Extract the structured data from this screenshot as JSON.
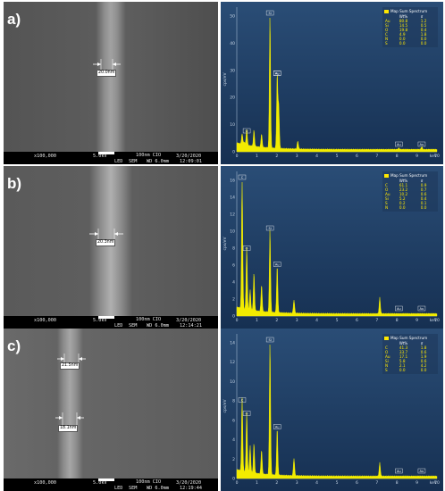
{
  "panels": [
    {
      "letter": "a)",
      "sem": {
        "measurements": [
          "20.0nm"
        ],
        "footer": {
          "mag": "x100,000",
          "kv": "5.0kV",
          "det": "LED",
          "scale": "100nm CIO",
          "date": "3/20/2020",
          "sem": "SEM",
          "wd": "WD 6.0mm",
          "time": "12:09:01"
        }
      },
      "eds": {
        "legend_title": "Map Sum Spectrum",
        "columns": [
          "",
          "Wt%",
          "σ"
        ],
        "rows": [
          [
            "Au",
            "80.8",
            "1.2"
          ],
          [
            "Si",
            "14.5",
            "0.5"
          ],
          [
            "O",
            "19.8",
            "0.4"
          ],
          [
            "C",
            "4.9",
            "1.8"
          ],
          [
            "N",
            "0.0",
            "0.0"
          ],
          [
            "S",
            "0.0",
            "0.0"
          ]
        ],
        "y_ticks": [
          "50",
          "40",
          "30",
          "20",
          "10",
          "0"
        ],
        "y_label": "cps/eV",
        "x_ticks": [
          "0",
          "1",
          "2",
          "3",
          "4",
          "5",
          "6",
          "7",
          "8",
          "9",
          "10"
        ],
        "x_unit": "keV",
        "peak_labels": [
          "Si",
          "Au",
          "Au",
          "Au",
          "Au",
          "O"
        ],
        "peaks": [
          [
            0.28,
            0.08
          ],
          [
            0.39,
            0.02
          ],
          [
            0.52,
            0.12
          ],
          [
            1.74,
            1.0
          ],
          [
            2.12,
            0.55
          ],
          [
            2.2,
            0.32
          ],
          [
            3.2,
            0.06
          ],
          [
            1.3,
            0.1
          ],
          [
            0.9,
            0.12
          ],
          [
            9.7,
            0.02
          ],
          [
            8.5,
            0.01
          ]
        ]
      }
    },
    {
      "letter": "b)",
      "sem": {
        "measurements": [
          "20.3nm"
        ],
        "footer": {
          "mag": "x100,000",
          "kv": "5.0kV",
          "det": "LED",
          "scale": "100nm CIO",
          "date": "3/20/2020",
          "sem": "SEM",
          "wd": "WD 6.0mm",
          "time": "12:14:21"
        }
      },
      "eds": {
        "legend_title": "Map Sum Spectrum",
        "columns": [
          "",
          "Wt%",
          "σ"
        ],
        "rows": [
          [
            "C",
            "61.1",
            "0.9"
          ],
          [
            "O",
            "23.2",
            "0.7"
          ],
          [
            "Au",
            "10.2",
            "0.6"
          ],
          [
            "Si",
            "5.2",
            "0.4"
          ],
          [
            "S",
            "0.2",
            "0.1"
          ],
          [
            "N",
            "0.0",
            "0.0"
          ]
        ],
        "y_ticks": [
          "16",
          "14",
          "12",
          "10",
          "8",
          "6",
          "4",
          "2",
          "0"
        ],
        "y_label": "cps/eV",
        "x_ticks": [
          "0",
          "1",
          "2",
          "3",
          "4",
          "5",
          "6",
          "7",
          "8",
          "9",
          "10"
        ],
        "x_unit": "keV",
        "peak_labels": [
          "C",
          "O",
          "Si",
          "Au",
          "Au",
          "Au"
        ],
        "peaks": [
          [
            0.28,
            1.0
          ],
          [
            0.52,
            0.47
          ],
          [
            0.9,
            0.28
          ],
          [
            1.74,
            0.62
          ],
          [
            2.12,
            0.35
          ],
          [
            1.3,
            0.2
          ],
          [
            3.0,
            0.1
          ],
          [
            7.5,
            0.12
          ],
          [
            0.7,
            0.15
          ]
        ]
      }
    },
    {
      "letter": "c)",
      "sem": {
        "measurements": [
          "21.5nm",
          "18.1nm"
        ],
        "footer": {
          "mag": "x100,000",
          "kv": "5.0kV",
          "det": "LED",
          "scale": "100nm CIO",
          "date": "3/20/2020",
          "sem": "SEM",
          "wd": "WD 6.0mm",
          "time": "12:19:44"
        }
      },
      "eds": {
        "legend_title": "Map Sum Spectrum",
        "columns": [
          "",
          "Wt%",
          "σ"
        ],
        "rows": [
          [
            "C",
            "41.3",
            "1.8"
          ],
          [
            "O",
            "33.7",
            "0.6"
          ],
          [
            "Au",
            "17.1",
            "1.9"
          ],
          [
            "Si",
            "5.8",
            "0.6"
          ],
          [
            "N",
            "2.1",
            "4.2"
          ],
          [
            "S",
            "0.0",
            "0.0"
          ]
        ],
        "y_ticks": [
          "14",
          "12",
          "10",
          "8",
          "6",
          "4",
          "2",
          "0"
        ],
        "y_label": "cps/eV",
        "x_ticks": [
          "0",
          "1",
          "2",
          "3",
          "4",
          "5",
          "6",
          "7",
          "8",
          "9",
          "10"
        ],
        "x_unit": "keV",
        "peak_labels": [
          "C",
          "O",
          "Si",
          "Au",
          "Au",
          "Au"
        ],
        "peaks": [
          [
            0.28,
            0.55
          ],
          [
            0.52,
            0.45
          ],
          [
            0.9,
            0.22
          ],
          [
            1.74,
            1.0
          ],
          [
            2.12,
            0.35
          ],
          [
            1.3,
            0.18
          ],
          [
            3.0,
            0.13
          ],
          [
            7.5,
            0.1
          ],
          [
            0.7,
            0.2
          ]
        ]
      }
    }
  ],
  "colors": {
    "eds_bg_top": "#2a4d76",
    "eds_bg_bottom": "#163052",
    "spectrum": "#f2ec00"
  }
}
